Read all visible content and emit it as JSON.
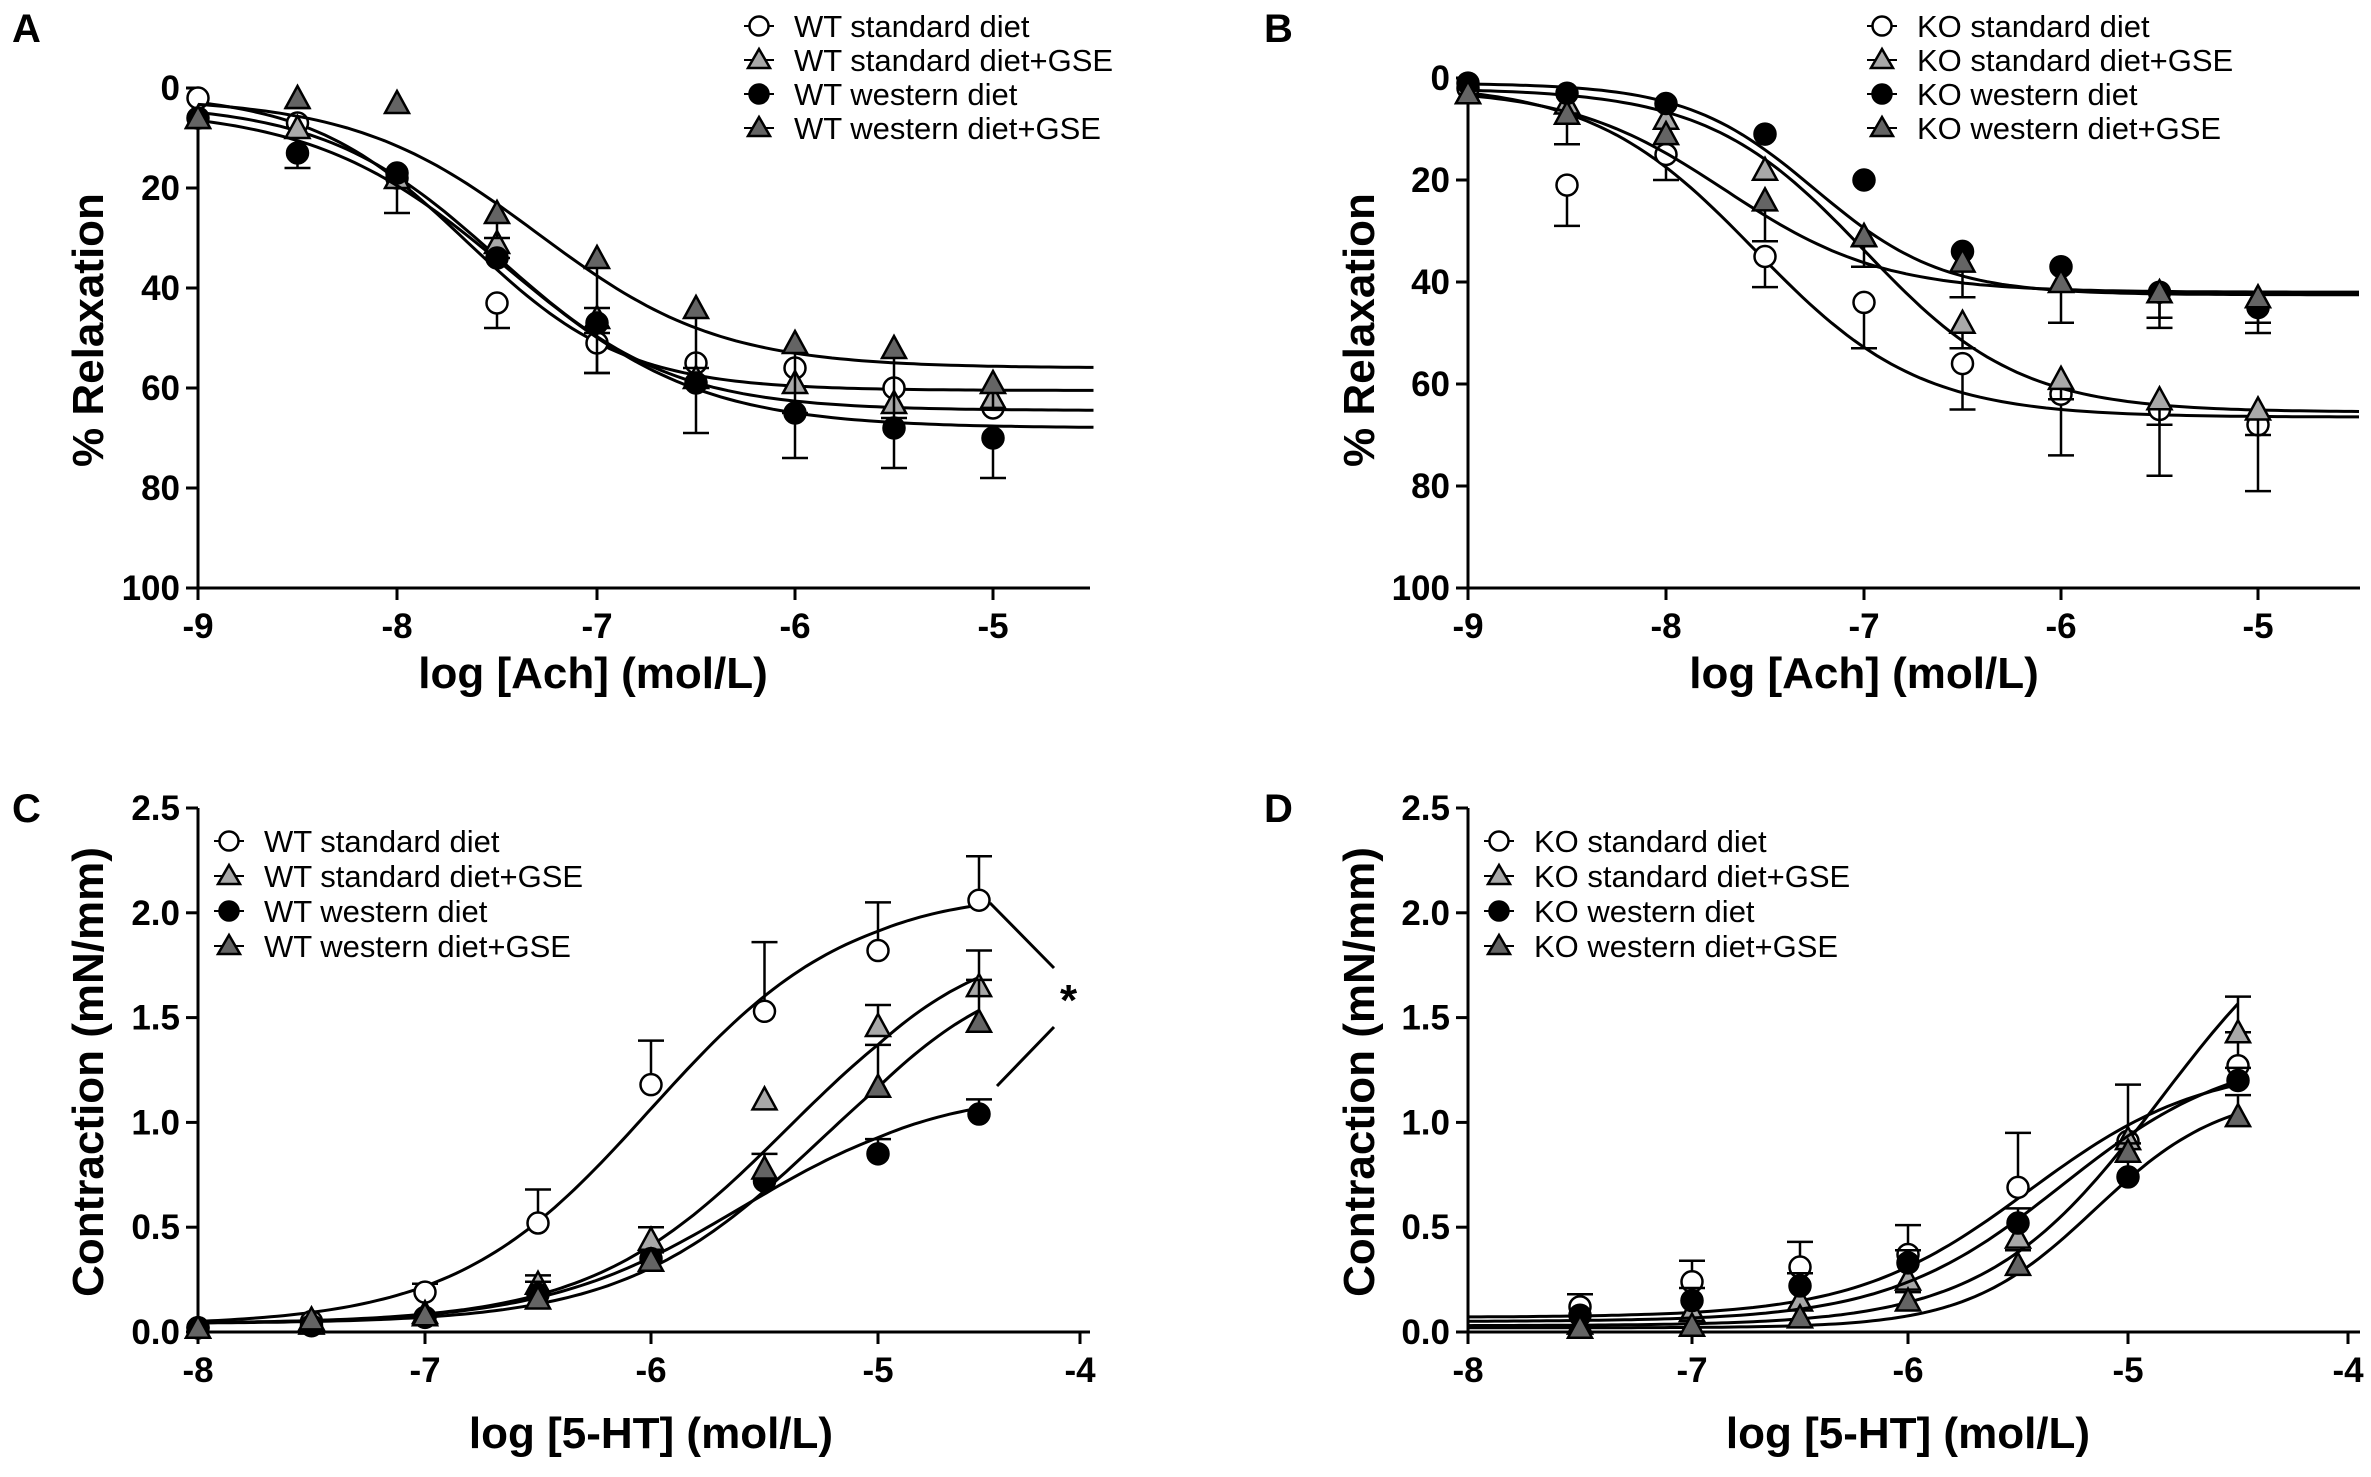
{
  "figure": {
    "panels": [
      "A",
      "B",
      "C",
      "D"
    ]
  },
  "chart_data": [
    {
      "panel": "A",
      "type": "line",
      "xlabel": "log [Ach] (mol/L)",
      "ylabel": "% Relaxation",
      "xlim": [
        -9,
        -4.5
      ],
      "ylim": [
        100,
        0
      ],
      "xticks": [
        -9,
        -8,
        -7,
        -6,
        -5
      ],
      "yticks": [
        0,
        20,
        40,
        60,
        80,
        100
      ],
      "legend_position": "top-right",
      "series": [
        {
          "name": "WT standard diet",
          "marker": "circle",
          "fill": "#ffffff",
          "x": [
            -9,
            -8.5,
            -8,
            -7.5,
            -7,
            -6.5,
            -6,
            -5.5,
            -5
          ],
          "y": [
            2,
            7,
            18,
            43,
            51,
            55,
            56,
            60,
            64
          ],
          "err": [
            0,
            0,
            0,
            5,
            6,
            0,
            0,
            0,
            0
          ],
          "fit": {
            "top": 1,
            "bottom": 60.5,
            "logec50": -7.65,
            "hill": 1.1
          }
        },
        {
          "name": "WT standard diet+GSE",
          "marker": "triangle",
          "fill": "#a8a8a8",
          "x": [
            -9,
            -8.5,
            -8,
            -7.5,
            -7,
            -6.5,
            -6,
            -5.5,
            -5
          ],
          "y": [
            6,
            8,
            18,
            31,
            46,
            58,
            59,
            63,
            62
          ],
          "err": [
            0,
            0,
            0,
            3,
            3,
            0,
            0,
            0,
            0
          ],
          "fit": {
            "top": 3,
            "bottom": 64.5,
            "logec50": -7.5,
            "hill": 1.0
          }
        },
        {
          "name": "WT western diet",
          "marker": "circle",
          "fill": "#000000",
          "x": [
            -9,
            -8.5,
            -8,
            -7.5,
            -7,
            -6.5,
            -6,
            -5.5,
            -5
          ],
          "y": [
            6,
            13,
            17,
            34,
            47,
            59,
            65,
            68,
            70
          ],
          "err": [
            0,
            3,
            8,
            0,
            10,
            10,
            9,
            8,
            8
          ],
          "fit": {
            "top": 4,
            "bottom": 68,
            "logec50": -7.45,
            "hill": 0.9
          }
        },
        {
          "name": "WT western diet+GSE",
          "marker": "triangle",
          "fill": "#646464",
          "x": [
            -9,
            -8.5,
            -8,
            -7.5,
            -7,
            -6.5,
            -6,
            -5.5,
            -5
          ],
          "y": [
            6,
            2,
            3,
            25,
            34,
            44,
            51,
            52,
            59
          ],
          "err": [
            0,
            2,
            0,
            5,
            10,
            12,
            14,
            14,
            5
          ],
          "fit": {
            "top": 2,
            "bottom": 56,
            "logec50": -7.3,
            "hill": 0.95
          }
        }
      ]
    },
    {
      "panel": "B",
      "type": "line",
      "xlabel": "log [Ach] (mol/L)",
      "ylabel": "% Relaxation",
      "xlim": [
        -9,
        -4.5
      ],
      "ylim": [
        100,
        0
      ],
      "xticks": [
        -9,
        -8,
        -7,
        -6,
        -5
      ],
      "yticks": [
        0,
        20,
        40,
        60,
        80,
        100
      ],
      "legend_position": "top-right",
      "series": [
        {
          "name": "KO standard diet",
          "marker": "circle",
          "fill": "#ffffff",
          "x": [
            -9,
            -8.5,
            -8,
            -7.5,
            -7,
            -6.5,
            -6,
            -5.5,
            -5
          ],
          "y": [
            2,
            21,
            15,
            35,
            44,
            56,
            62,
            65,
            68
          ],
          "err": [
            0,
            8,
            5,
            6,
            9,
            9,
            12,
            13,
            13
          ],
          "fit": {
            "top": 1,
            "bottom": 66.5,
            "logec50": -7.55,
            "hill": 1.05
          }
        },
        {
          "name": "KO standard diet+GSE",
          "marker": "triangle",
          "fill": "#a8a8a8",
          "x": [
            -9,
            -8.5,
            -8,
            -7.5,
            -7,
            -6.5,
            -6,
            -5.5,
            -5
          ],
          "y": [
            3,
            5,
            8,
            18,
            31,
            48,
            59,
            63,
            65
          ],
          "err": [
            0,
            0,
            0,
            0,
            0,
            5,
            4,
            5,
            5
          ],
          "fit": {
            "top": 2,
            "bottom": 65.5,
            "logec50": -7.0,
            "hill": 1.1
          }
        },
        {
          "name": "KO western diet",
          "marker": "circle",
          "fill": "#000000",
          "x": [
            -9,
            -8.5,
            -8,
            -7.5,
            -7,
            -6.5,
            -6,
            -5.5,
            -5
          ],
          "y": [
            1,
            3,
            5,
            11,
            20,
            34,
            37,
            42,
            45
          ],
          "err": [
            0,
            0,
            0,
            0,
            0,
            0,
            0,
            5,
            5
          ],
          "fit": {
            "top": 1,
            "bottom": 42.5,
            "logec50": -7.25,
            "hill": 1.35
          }
        },
        {
          "name": "KO western diet+GSE",
          "marker": "triangle",
          "fill": "#646464",
          "x": [
            -9,
            -8.5,
            -8,
            -7.5,
            -7,
            -6.5,
            -6,
            -5.5,
            -5
          ],
          "y": [
            3,
            7,
            11,
            24,
            31,
            36,
            40,
            42,
            43
          ],
          "err": [
            0,
            6,
            0,
            8,
            6,
            7,
            8,
            7,
            5
          ],
          "fit": {
            "top": 2,
            "bottom": 42,
            "logec50": -7.7,
            "hill": 1.1
          }
        }
      ]
    },
    {
      "panel": "C",
      "type": "line",
      "xlabel": "log [5-HT] (mol/L)",
      "ylabel": "Contraction (mN/mm)",
      "xlim": [
        -8,
        -4
      ],
      "ylim": [
        0,
        2.5
      ],
      "xticks": [
        -8,
        -7,
        -6,
        -5,
        -4
      ],
      "yticks": [
        0.0,
        0.5,
        1.0,
        1.5,
        2.0,
        2.5
      ],
      "legend_position": "top-left",
      "annotation": "*",
      "series": [
        {
          "name": "WT standard diet",
          "marker": "circle",
          "fill": "#ffffff",
          "x": [
            -8,
            -7.5,
            -7,
            -6.5,
            -6,
            -5.5,
            -5,
            -4.5
          ],
          "y": [
            0.02,
            0.05,
            0.19,
            0.52,
            1.18,
            1.53,
            1.82,
            2.06
          ],
          "err": [
            0,
            0,
            0.04,
            0.16,
            0.21,
            0.33,
            0.23,
            0.21
          ],
          "fit": {
            "bottom": 0.03,
            "top": 2.1,
            "logec50": -6.0,
            "hill": 1.0
          }
        },
        {
          "name": "WT standard diet+GSE",
          "marker": "triangle",
          "fill": "#a8a8a8",
          "x": [
            -8,
            -7.5,
            -7,
            -6.5,
            -6,
            -5.5,
            -5,
            -4.5
          ],
          "y": [
            0.02,
            0.04,
            0.09,
            0.23,
            0.44,
            1.11,
            1.46,
            1.65
          ],
          "err": [
            0,
            0,
            0,
            0.04,
            0.06,
            0,
            0.1,
            0.17
          ],
          "fit": {
            "bottom": 0.04,
            "top": 1.9,
            "logec50": -5.4,
            "hill": 1.0
          }
        },
        {
          "name": "WT western diet",
          "marker": "circle",
          "fill": "#000000",
          "x": [
            -8,
            -7.5,
            -7,
            -6.5,
            -6,
            -5.5,
            -5,
            -4.5
          ],
          "y": [
            0.02,
            0.03,
            0.07,
            0.18,
            0.35,
            0.72,
            0.85,
            1.04
          ],
          "err": [
            0,
            0,
            0,
            0.06,
            0.03,
            0.13,
            0.07,
            0.07
          ],
          "fit": {
            "bottom": 0.04,
            "top": 1.15,
            "logec50": -5.6,
            "hill": 1.0
          }
        },
        {
          "name": "WT western diet+GSE",
          "marker": "triangle",
          "fill": "#646464",
          "x": [
            -8,
            -7.5,
            -7,
            -6.5,
            -6,
            -5.5,
            -5,
            -4.5
          ],
          "y": [
            0.02,
            0.06,
            0.08,
            0.16,
            0.34,
            0.78,
            1.17,
            1.48
          ],
          "err": [
            0,
            0,
            0,
            0,
            0,
            0,
            0.2,
            0.2
          ],
          "fit": {
            "bottom": 0.04,
            "top": 1.8,
            "logec50": -5.25,
            "hill": 1.0
          }
        }
      ]
    },
    {
      "panel": "D",
      "type": "line",
      "xlabel": "log [5-HT] (mol/L)",
      "ylabel": "Contraction (mN/mm)",
      "xlim": [
        -8,
        -4
      ],
      "ylim": [
        0,
        2.5
      ],
      "xticks": [
        -8,
        -7,
        -6,
        -5,
        -4
      ],
      "yticks": [
        0.0,
        0.5,
        1.0,
        1.5,
        2.0,
        2.5
      ],
      "legend_position": "top-left",
      "series": [
        {
          "name": "KO standard diet",
          "marker": "circle",
          "fill": "#ffffff",
          "x": [
            -7.5,
            -7,
            -6.5,
            -6,
            -5.5,
            -5,
            -4.5
          ],
          "y": [
            0.12,
            0.24,
            0.31,
            0.37,
            0.69,
            0.91,
            1.27
          ],
          "err": [
            0.06,
            0.1,
            0.12,
            0.14,
            0.26,
            0.27,
            0.16
          ],
          "fit": {
            "bottom": 0.07,
            "top": 1.28,
            "logec50": -5.45,
            "hill": 1.1
          }
        },
        {
          "name": "KO standard diet+GSE",
          "marker": "triangle",
          "fill": "#a8a8a8",
          "x": [
            -7.5,
            -7,
            -6.5,
            -6,
            -5.5,
            -5,
            -4.5
          ],
          "y": [
            0.04,
            0.1,
            0.15,
            0.25,
            0.45,
            0.92,
            1.43
          ],
          "err": [
            0,
            0,
            0,
            0,
            0,
            0,
            0.17
          ],
          "fit": {
            "bottom": 0.03,
            "top": 2.2,
            "logec50": -4.85,
            "hill": 1.1
          }
        },
        {
          "name": "KO western diet",
          "marker": "circle",
          "fill": "#000000",
          "x": [
            -7.5,
            -7,
            -6.5,
            -6,
            -5.5,
            -5,
            -4.5
          ],
          "y": [
            0.08,
            0.15,
            0.22,
            0.33,
            0.52,
            0.74,
            1.2
          ],
          "err": [
            0,
            0.06,
            0.06,
            0.06,
            0.07,
            0.16,
            0.06
          ],
          "fit": {
            "bottom": 0.05,
            "top": 1.35,
            "logec50": -5.3,
            "hill": 1.1
          }
        },
        {
          "name": "KO western diet+GSE",
          "marker": "triangle",
          "fill": "#646464",
          "x": [
            -7.5,
            -7,
            -6.5,
            -6,
            -5.5,
            -5,
            -4.5
          ],
          "y": [
            0.02,
            0.03,
            0.07,
            0.15,
            0.32,
            0.86,
            1.03
          ],
          "err": [
            0,
            0,
            0,
            0.04,
            0.07,
            0,
            0.1
          ],
          "fit": {
            "bottom": 0.02,
            "top": 1.15,
            "logec50": -5.15,
            "hill": 1.5
          }
        }
      ]
    }
  ]
}
